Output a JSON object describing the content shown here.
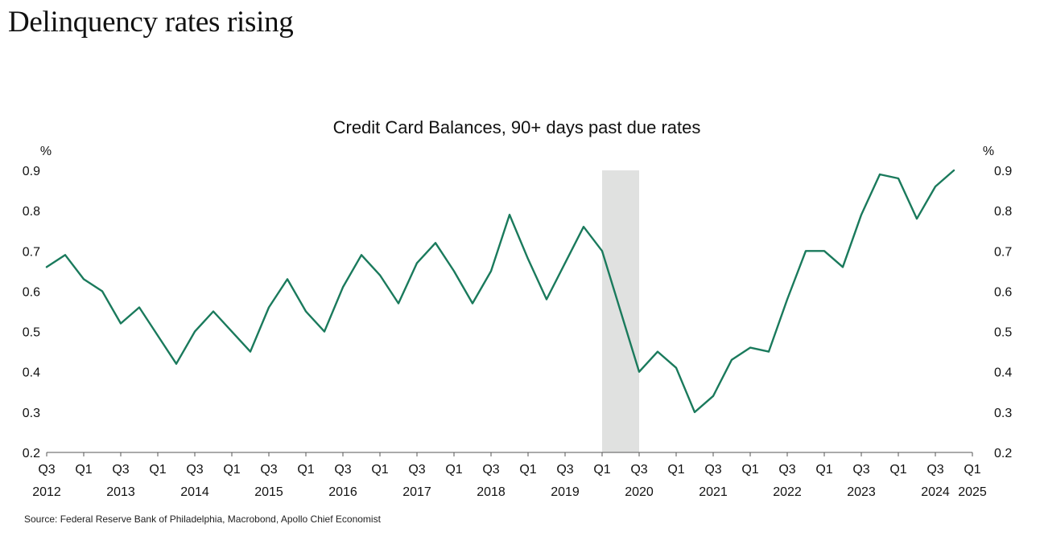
{
  "page_title": "Delinquency rates rising",
  "source_note": "Source: Federal Reserve Bank of Philadelphia, Macrobond, Apollo Chief Economist",
  "colors": {
    "line": "#1a7a5c",
    "recession_shade": "#e0e1e0",
    "axis": "#555555"
  },
  "chart_data": {
    "type": "line",
    "title": "Credit Card Balances, 90+ days past due rates",
    "ylabel_left": "%",
    "ylabel_right": "%",
    "ylim": [
      0.2,
      0.9
    ],
    "yticks": [
      0.2,
      0.3,
      0.4,
      0.5,
      0.6,
      0.7,
      0.8,
      0.9
    ],
    "ytick_labels": [
      "0.2",
      "0.3",
      "0.4",
      "0.5",
      "0.6",
      "0.7",
      "0.8",
      "0.9"
    ],
    "x_start": "2012Q3",
    "xlim_quarter_index": [
      0,
      50
    ],
    "x_quarter_ticks": [
      {
        "q": 0,
        "label": "Q3"
      },
      {
        "q": 2,
        "label": "Q1"
      },
      {
        "q": 4,
        "label": "Q3"
      },
      {
        "q": 6,
        "label": "Q1"
      },
      {
        "q": 8,
        "label": "Q3"
      },
      {
        "q": 10,
        "label": "Q1"
      },
      {
        "q": 12,
        "label": "Q3"
      },
      {
        "q": 14,
        "label": "Q1"
      },
      {
        "q": 16,
        "label": "Q3"
      },
      {
        "q": 18,
        "label": "Q1"
      },
      {
        "q": 20,
        "label": "Q3"
      },
      {
        "q": 22,
        "label": "Q1"
      },
      {
        "q": 24,
        "label": "Q3"
      },
      {
        "q": 26,
        "label": "Q1"
      },
      {
        "q": 28,
        "label": "Q3"
      },
      {
        "q": 30,
        "label": "Q1"
      },
      {
        "q": 32,
        "label": "Q3"
      },
      {
        "q": 34,
        "label": "Q1"
      },
      {
        "q": 36,
        "label": "Q3"
      },
      {
        "q": 38,
        "label": "Q1"
      },
      {
        "q": 40,
        "label": "Q3"
      },
      {
        "q": 42,
        "label": "Q1"
      },
      {
        "q": 44,
        "label": "Q3"
      },
      {
        "q": 46,
        "label": "Q1"
      },
      {
        "q": 48,
        "label": "Q3"
      },
      {
        "q": 50,
        "label": "Q1"
      }
    ],
    "x_year_labels": [
      {
        "q": 0,
        "label": "2012"
      },
      {
        "q": 4,
        "label": "2013"
      },
      {
        "q": 8,
        "label": "2014"
      },
      {
        "q": 12,
        "label": "2015"
      },
      {
        "q": 16,
        "label": "2016"
      },
      {
        "q": 20,
        "label": "2017"
      },
      {
        "q": 24,
        "label": "2018"
      },
      {
        "q": 28,
        "label": "2019"
      },
      {
        "q": 32,
        "label": "2020"
      },
      {
        "q": 36,
        "label": "2021"
      },
      {
        "q": 40,
        "label": "2022"
      },
      {
        "q": 44,
        "label": "2023"
      },
      {
        "q": 48,
        "label": "2024"
      },
      {
        "q": 50,
        "label": "2025"
      }
    ],
    "recession_shading": {
      "from_q": 30,
      "to_q": 32
    },
    "series": [
      {
        "name": "90+ days past due rate",
        "x_quarter_index": [
          0,
          1,
          2,
          3,
          4,
          5,
          6,
          7,
          8,
          9,
          10,
          11,
          12,
          13,
          14,
          15,
          16,
          17,
          18,
          19,
          20,
          21,
          22,
          23,
          24,
          25,
          26,
          27,
          28,
          29,
          30,
          31,
          32,
          33,
          34,
          35,
          36,
          37,
          38,
          39,
          40,
          41,
          42,
          43,
          44,
          45,
          46,
          47,
          48,
          49,
          50
        ],
        "values": [
          0.66,
          0.69,
          0.63,
          0.6,
          0.52,
          0.56,
          0.49,
          0.42,
          0.5,
          0.55,
          0.5,
          0.45,
          0.56,
          0.63,
          0.55,
          0.5,
          0.61,
          0.69,
          0.64,
          0.57,
          0.67,
          0.72,
          0.65,
          0.57,
          0.65,
          0.79,
          0.68,
          0.58,
          0.67,
          0.76,
          0.7,
          0.55,
          0.4,
          0.45,
          0.41,
          0.3,
          0.34,
          0.43,
          0.46,
          0.45,
          0.58,
          0.7,
          0.7,
          0.66,
          0.79,
          0.89,
          0.88,
          0.78,
          0.86,
          0.9,
          null
        ]
      }
    ]
  }
}
